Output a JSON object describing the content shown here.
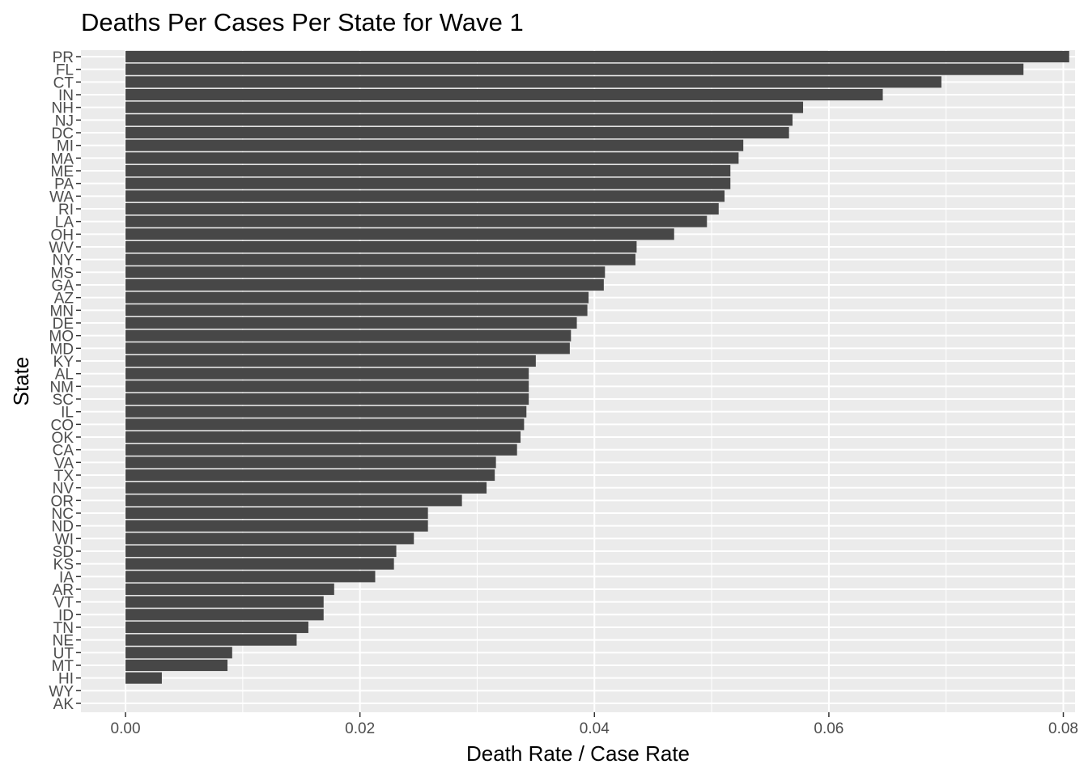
{
  "chart_data": {
    "type": "bar",
    "orientation": "horizontal",
    "title": "Deaths Per Cases Per State for Wave 1",
    "xlabel": "Death Rate / Case Rate",
    "ylabel": "State",
    "xlim": [
      -0.0038,
      0.081
    ],
    "xticks": [
      0.0,
      0.02,
      0.04,
      0.06,
      0.08
    ],
    "xtick_labels": [
      "0.00",
      "0.02",
      "0.04",
      "0.06",
      "0.08"
    ],
    "grid": true,
    "colors": {
      "panel": "#ebebeb",
      "bar": "#474747",
      "grid": "#ffffff",
      "tick_text": "#4d4d4d"
    },
    "categories": [
      "PR",
      "FL",
      "CT",
      "IN",
      "NH",
      "NJ",
      "DC",
      "MI",
      "MA",
      "ME",
      "PA",
      "WA",
      "RI",
      "LA",
      "OH",
      "WV",
      "NY",
      "MS",
      "GA",
      "AZ",
      "MN",
      "DE",
      "MO",
      "MD",
      "KY",
      "AL",
      "NM",
      "SC",
      "IL",
      "CO",
      "OK",
      "CA",
      "VA",
      "TX",
      "NV",
      "OR",
      "NC",
      "ND",
      "WI",
      "SD",
      "KS",
      "IA",
      "AR",
      "VT",
      "ID",
      "TN",
      "NE",
      "UT",
      "MT",
      "HI",
      "WY",
      "AK"
    ],
    "values": [
      0.0805,
      0.0766,
      0.0696,
      0.0646,
      0.0578,
      0.0569,
      0.0566,
      0.0527,
      0.0523,
      0.0516,
      0.0516,
      0.0511,
      0.0506,
      0.0496,
      0.0468,
      0.0436,
      0.0435,
      0.0409,
      0.0408,
      0.0395,
      0.0394,
      0.0385,
      0.038,
      0.0379,
      0.035,
      0.0344,
      0.0344,
      0.0344,
      0.0342,
      0.034,
      0.0337,
      0.0334,
      0.0316,
      0.0315,
      0.0308,
      0.0287,
      0.0258,
      0.0258,
      0.0246,
      0.0231,
      0.0229,
      0.0213,
      0.0178,
      0.0169,
      0.0169,
      0.0156,
      0.0146,
      0.0091,
      0.0087,
      0.0031,
      0.0,
      0.0
    ]
  }
}
